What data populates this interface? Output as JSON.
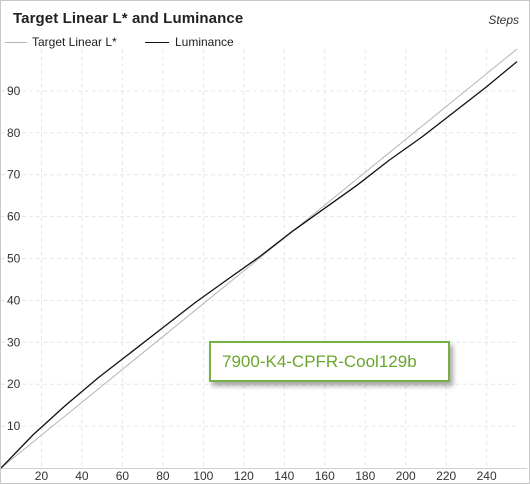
{
  "header": {
    "steps_label": "Steps"
  },
  "annotation": {
    "text": "7900-K4-CPFR-Cool129b"
  },
  "chart_data": {
    "type": "line",
    "title": "Target Linear L* and Luminance",
    "xlabel": "",
    "ylabel": "",
    "xlim": [
      0,
      255
    ],
    "ylim": [
      0,
      100
    ],
    "x_ticks": [
      20,
      40,
      60,
      80,
      100,
      120,
      140,
      160,
      180,
      200,
      220,
      240
    ],
    "y_ticks": [
      10,
      20,
      30,
      40,
      50,
      60,
      70,
      80,
      90
    ],
    "grid": true,
    "legend_position": "top-left",
    "series": [
      {
        "name": "Target Linear L*",
        "color": "#b4b4b4",
        "x": [
          0,
          255
        ],
        "y": [
          0,
          100
        ]
      },
      {
        "name": "Luminance",
        "color": "#111111",
        "x": [
          0,
          16,
          32,
          48,
          64,
          80,
          96,
          112,
          128,
          144,
          160,
          176,
          192,
          208,
          224,
          240,
          255
        ],
        "y": [
          0,
          8,
          15,
          21.5,
          27.5,
          33.5,
          39.5,
          45,
          50.5,
          56.5,
          62,
          67.5,
          73.5,
          79,
          85,
          91,
          97
        ]
      }
    ]
  }
}
